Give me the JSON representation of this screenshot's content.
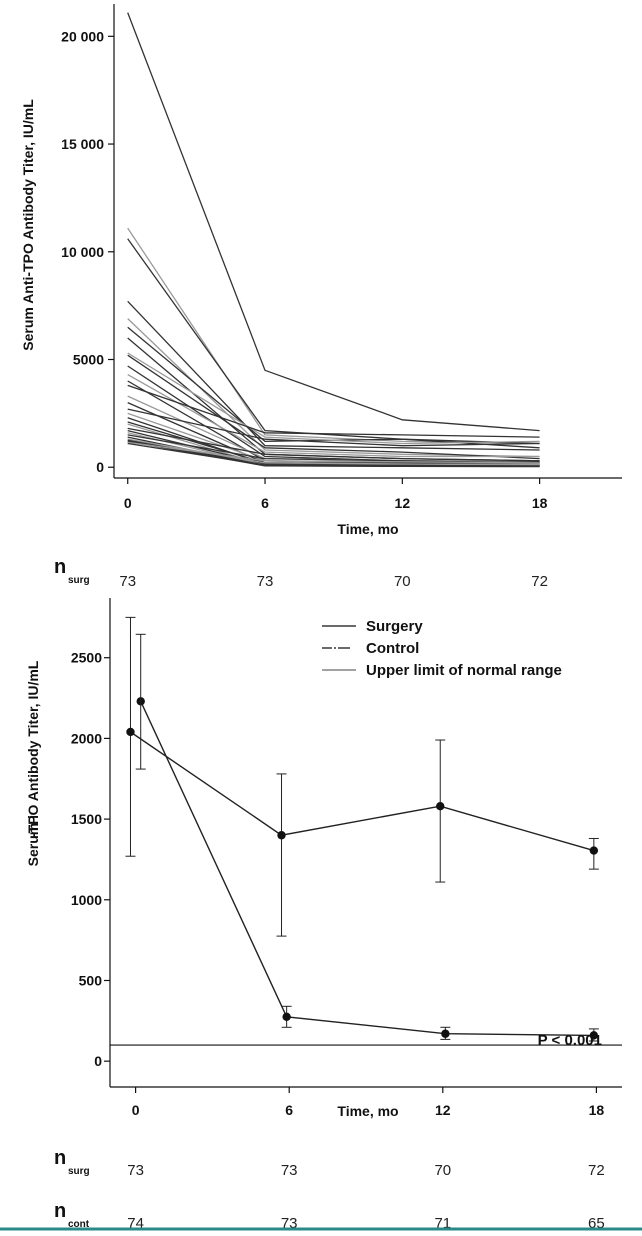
{
  "chart_data": [
    {
      "type": "line",
      "title": "",
      "xlabel": "Time, mo",
      "ylabel": "Serum Anti-TPO Antibody Titer, IU/mL",
      "x": [
        0,
        6,
        12,
        18
      ],
      "xticks": [
        "0",
        "6",
        "12",
        "18"
      ],
      "yticks": [
        "0",
        "5000",
        "10 000",
        "15 000",
        "20 000"
      ],
      "ytick_values": [
        0,
        5000,
        10000,
        15000,
        20000
      ],
      "ylim": [
        -500,
        21500
      ],
      "xlim": [
        -0.6,
        21.6
      ],
      "grid": false,
      "line_color_dark": "#333333",
      "line_color_light": "#9a9a9a",
      "series": [
        {
          "values": [
            21100,
            4500,
            2200,
            1700
          ]
        },
        {
          "values": [
            11100,
            1500,
            1200,
            1100
          ]
        },
        {
          "values": [
            10600,
            1700,
            1300,
            900
          ]
        },
        {
          "values": [
            7700,
            1000,
            900,
            800
          ]
        },
        {
          "values": [
            6900,
            800,
            600,
            500
          ]
        },
        {
          "values": [
            6500,
            1200,
            1300,
            1100
          ]
        },
        {
          "values": [
            6000,
            600,
            400,
            300
          ]
        },
        {
          "values": [
            5300,
            1400,
            1100,
            1200
          ]
        },
        {
          "values": [
            5200,
            900,
            700,
            400
          ]
        },
        {
          "values": [
            4700,
            500,
            300,
            250
          ]
        },
        {
          "values": [
            4300,
            700,
            500,
            500
          ]
        },
        {
          "values": [
            4000,
            300,
            200,
            150
          ]
        },
        {
          "values": [
            3800,
            1600,
            1500,
            1400
          ]
        },
        {
          "values": [
            3300,
            400,
            300,
            300
          ]
        },
        {
          "values": [
            3000,
            200,
            150,
            100
          ]
        },
        {
          "values": [
            2700,
            1300,
            1000,
            1100
          ]
        },
        {
          "values": [
            2500,
            300,
            200,
            150
          ]
        },
        {
          "values": [
            2300,
            150,
            100,
            100
          ]
        },
        {
          "values": [
            2100,
            200,
            200,
            200
          ]
        },
        {
          "values": [
            2000,
            100,
            50,
            50
          ]
        },
        {
          "values": [
            1800,
            600,
            400,
            300
          ]
        },
        {
          "values": [
            1700,
            150,
            100,
            80
          ]
        },
        {
          "values": [
            1600,
            100,
            80,
            60
          ]
        },
        {
          "values": [
            1500,
            400,
            300,
            200
          ]
        },
        {
          "values": [
            1400,
            80,
            60,
            50
          ]
        },
        {
          "values": [
            1300,
            200,
            150,
            100
          ]
        },
        {
          "values": [
            1250,
            100,
            50,
            50
          ]
        },
        {
          "values": [
            1200,
            60,
            40,
            30
          ]
        },
        {
          "values": [
            1150,
            300,
            250,
            200
          ]
        },
        {
          "values": [
            1100,
            100,
            80,
            60
          ]
        }
      ],
      "n_rows": [
        {
          "label": "n",
          "sub": "surg",
          "values": [
            "73",
            "73",
            "70",
            "72"
          ]
        }
      ]
    },
    {
      "type": "line",
      "title": "",
      "xlabel": "Time, mo",
      "ylabel": "Serum i",
      "ylabel_2": "-TPO Antibody Titer, IU/mL",
      "x": [
        0,
        6,
        12,
        18
      ],
      "xticks": [
        "0",
        "6",
        "12",
        "18"
      ],
      "yticks": [
        "0",
        "500",
        "1000",
        "1500",
        "2000",
        "2500"
      ],
      "ytick_values": [
        0,
        500,
        1000,
        1500,
        2000,
        2500
      ],
      "ylim": [
        -160,
        2870
      ],
      "xlim": [
        -1.0,
        19.0
      ],
      "grid": false,
      "legend": {
        "placement": "top-right",
        "entries": [
          "Surgery",
          "Control",
          "Upper limit of normal range"
        ]
      },
      "annotation": "P < 0.001",
      "upper_limit_normal": 100,
      "series": [
        {
          "name": "Surgery",
          "x": [
            0.2,
            5.9,
            12.1,
            17.9
          ],
          "values": [
            2230,
            275,
            170,
            160
          ],
          "err_low": [
            2230,
            210,
            135,
            125
          ],
          "err_high": [
            2230,
            340,
            210,
            200
          ]
        },
        {
          "name": "Control",
          "x": [
            -0.2,
            5.7,
            11.9,
            17.9
          ],
          "values": [
            2040,
            1400,
            1580,
            1305
          ],
          "err_low": [
            1270,
            775,
            1110,
            1190
          ],
          "err_high": [
            2750,
            1780,
            1990,
            1380
          ]
        }
      ],
      "control_error_upper_at_0": {
        "x": 0.2,
        "low": 1810,
        "high": 2645
      },
      "n_rows": [
        {
          "label": "n",
          "sub": "surg",
          "values": [
            "73",
            "73",
            "70",
            "72"
          ]
        },
        {
          "label": "n",
          "sub": "cont",
          "values": [
            "74",
            "73",
            "71",
            "65"
          ]
        }
      ]
    }
  ]
}
